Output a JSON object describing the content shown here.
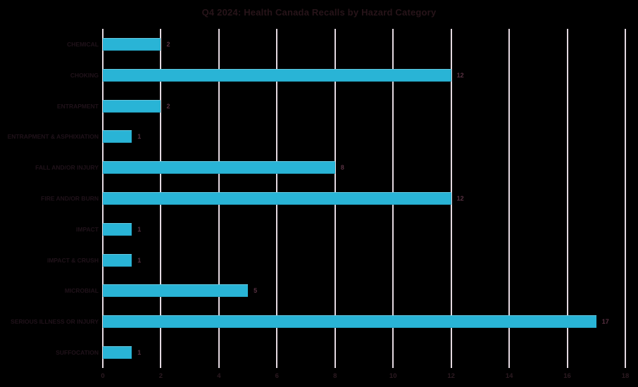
{
  "title": "Q4 2024: Health Canada Recalls by Hazard Category",
  "colors": {
    "background": "#000000",
    "bar": "#29b4d6",
    "gridline": "#e4d9e1",
    "title_text": "#271419",
    "category_text": "#20121a",
    "tick_text": "#2c1a21",
    "value_text": "#583142"
  },
  "chart_data": {
    "type": "bar",
    "orientation": "horizontal",
    "title": "Q4 2024: Health Canada Recalls by Hazard Category",
    "categories": [
      "CHEMICAL",
      "CHOKING",
      "ENTRAPMENT",
      "ENTRAPMENT & ASPHIXIATION",
      "FALL AND/OR INJURY",
      "FIRE AND/OR BURN",
      "IMPACT",
      "IMPACT & CRUSH",
      "MICROBIAL",
      "SERIOUS ILLNESS OR INJURY",
      "SUFFOCATION"
    ],
    "values": [
      2,
      12,
      2,
      1,
      8,
      12,
      1,
      1,
      5,
      17,
      1
    ],
    "data_labels": [
      "2",
      "12",
      "2",
      "1",
      "8",
      "12",
      "1",
      "1",
      "5",
      "17",
      "1"
    ],
    "xlabel": "",
    "ylabel": "",
    "xlim": [
      0,
      18
    ],
    "xticks": [
      "0",
      "2",
      "4",
      "6",
      "8",
      "10",
      "12",
      "14",
      "16",
      "18"
    ],
    "grid": "vertical",
    "legend": "none"
  }
}
